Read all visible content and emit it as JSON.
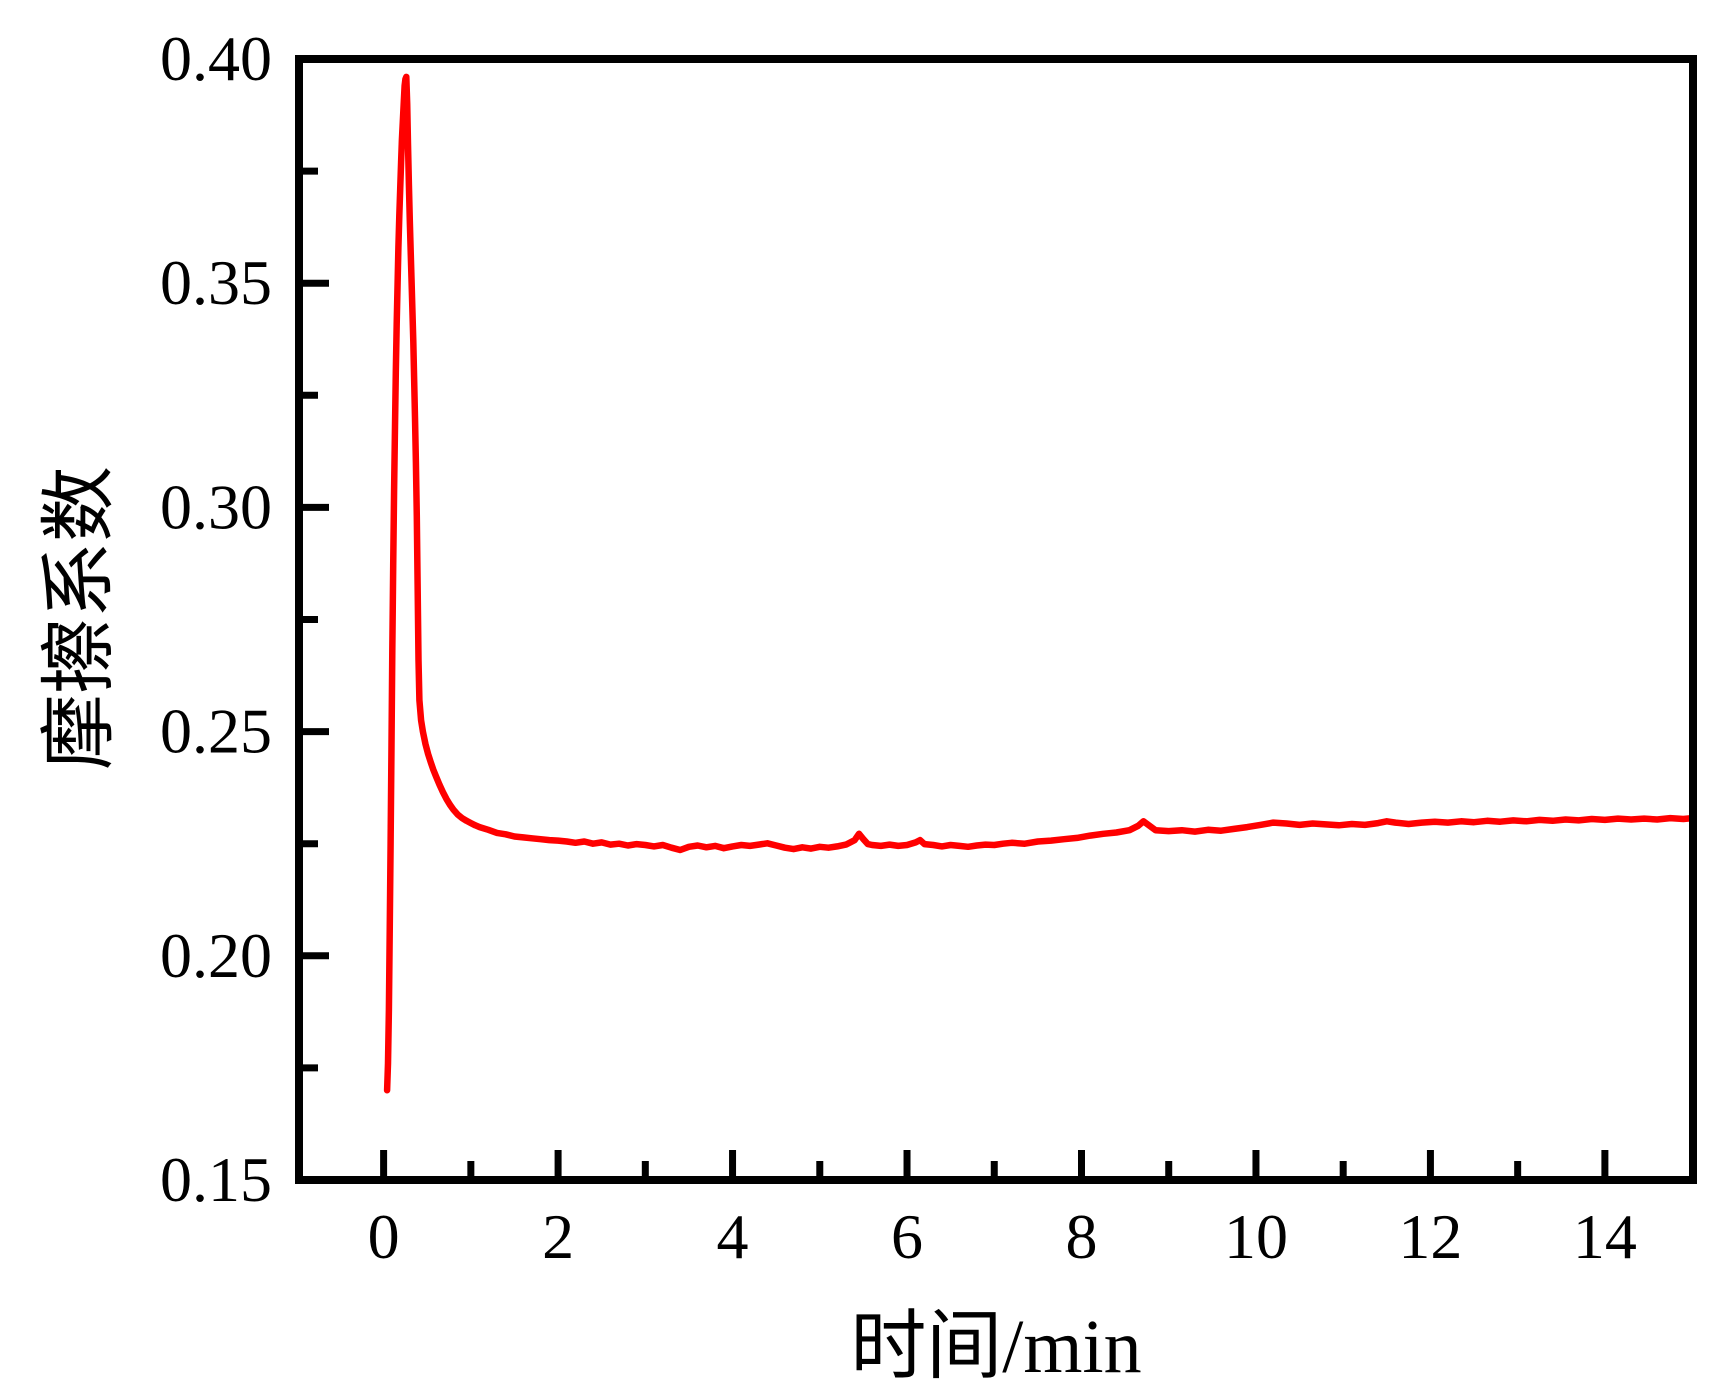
{
  "colors": {
    "background": "#FFFFFF",
    "axis": "#000000",
    "curve": "#FF0000"
  },
  "chart_data": {
    "type": "line",
    "title": "",
    "xlabel": "时间/min",
    "ylabel": "摩擦系数",
    "xlim": [
      -0.97,
      15.01
    ],
    "ylim": [
      0.15,
      0.4
    ],
    "grid": false,
    "legend": "none",
    "x_major_ticks": [
      0,
      2,
      4,
      6,
      8,
      10,
      12,
      14
    ],
    "x_major_labels": [
      "0",
      "2",
      "4",
      "6",
      "8",
      "10",
      "12",
      "14"
    ],
    "x_minor_ticks": [
      1,
      3,
      5,
      7,
      9,
      11,
      13
    ],
    "y_major_ticks": [
      0.15,
      0.2,
      0.25,
      0.3,
      0.35,
      0.4
    ],
    "y_major_labels": [
      "0.15",
      "0.20",
      "0.25",
      "0.30",
      "0.35",
      "0.40"
    ],
    "y_minor_ticks": [
      0.175,
      0.225,
      0.275,
      0.325,
      0.375
    ],
    "series": [
      {
        "color": "#FF0000",
        "points": [
          [
            0.04,
            0.17
          ],
          [
            0.05,
            0.176
          ],
          [
            0.06,
            0.188
          ],
          [
            0.07,
            0.205
          ],
          [
            0.08,
            0.225
          ],
          [
            0.09,
            0.247
          ],
          [
            0.1,
            0.268
          ],
          [
            0.11,
            0.287
          ],
          [
            0.12,
            0.304
          ],
          [
            0.13,
            0.318
          ],
          [
            0.14,
            0.33
          ],
          [
            0.15,
            0.341
          ],
          [
            0.16,
            0.35
          ],
          [
            0.17,
            0.358
          ],
          [
            0.18,
            0.365
          ],
          [
            0.19,
            0.371
          ],
          [
            0.2,
            0.377
          ],
          [
            0.21,
            0.382
          ],
          [
            0.22,
            0.386
          ],
          [
            0.23,
            0.39
          ],
          [
            0.24,
            0.394
          ],
          [
            0.25,
            0.3955
          ],
          [
            0.26,
            0.396
          ],
          [
            0.27,
            0.39
          ],
          [
            0.28,
            0.381
          ],
          [
            0.29,
            0.372
          ],
          [
            0.3,
            0.364
          ],
          [
            0.31,
            0.357
          ],
          [
            0.32,
            0.351
          ],
          [
            0.33,
            0.344
          ],
          [
            0.34,
            0.337
          ],
          [
            0.35,
            0.329
          ],
          [
            0.36,
            0.32
          ],
          [
            0.37,
            0.31
          ],
          [
            0.38,
            0.298
          ],
          [
            0.39,
            0.283
          ],
          [
            0.4,
            0.266
          ],
          [
            0.41,
            0.257
          ],
          [
            0.43,
            0.2525
          ],
          [
            0.45,
            0.25
          ],
          [
            0.48,
            0.2472
          ],
          [
            0.51,
            0.245
          ],
          [
            0.54,
            0.2432
          ],
          [
            0.57,
            0.2415
          ],
          [
            0.6,
            0.24
          ],
          [
            0.64,
            0.2382
          ],
          [
            0.68,
            0.2365
          ],
          [
            0.72,
            0.235
          ],
          [
            0.76,
            0.2337
          ],
          [
            0.8,
            0.2326
          ],
          [
            0.85,
            0.2315
          ],
          [
            0.9,
            0.2307
          ],
          [
            0.95,
            0.2301
          ],
          [
            1.0,
            0.2296
          ],
          [
            1.05,
            0.2291
          ],
          [
            1.1,
            0.2287
          ],
          [
            1.2,
            0.2281
          ],
          [
            1.3,
            0.2274
          ],
          [
            1.4,
            0.2271
          ],
          [
            1.5,
            0.2266
          ],
          [
            1.6,
            0.2264
          ],
          [
            1.7,
            0.2262
          ],
          [
            1.8,
            0.226
          ],
          [
            1.9,
            0.2258
          ],
          [
            2.0,
            0.2257
          ],
          [
            2.1,
            0.2255
          ],
          [
            2.2,
            0.2252
          ],
          [
            2.3,
            0.2255
          ],
          [
            2.4,
            0.225
          ],
          [
            2.5,
            0.2253
          ],
          [
            2.6,
            0.2248
          ],
          [
            2.7,
            0.225
          ],
          [
            2.8,
            0.2246
          ],
          [
            2.9,
            0.2249
          ],
          [
            3.0,
            0.2247
          ],
          [
            3.1,
            0.2244
          ],
          [
            3.2,
            0.2247
          ],
          [
            3.3,
            0.2241
          ],
          [
            3.4,
            0.2236
          ],
          [
            3.5,
            0.2243
          ],
          [
            3.6,
            0.2246
          ],
          [
            3.7,
            0.2242
          ],
          [
            3.8,
            0.2245
          ],
          [
            3.9,
            0.224
          ],
          [
            4.0,
            0.2244
          ],
          [
            4.1,
            0.2247
          ],
          [
            4.2,
            0.2245
          ],
          [
            4.3,
            0.2248
          ],
          [
            4.4,
            0.2251
          ],
          [
            4.5,
            0.2246
          ],
          [
            4.6,
            0.2241
          ],
          [
            4.7,
            0.2238
          ],
          [
            4.8,
            0.2242
          ],
          [
            4.9,
            0.2239
          ],
          [
            5.0,
            0.2243
          ],
          [
            5.1,
            0.2241
          ],
          [
            5.2,
            0.2244
          ],
          [
            5.3,
            0.2248
          ],
          [
            5.4,
            0.2258
          ],
          [
            5.45,
            0.2272
          ],
          [
            5.5,
            0.226
          ],
          [
            5.55,
            0.2249
          ],
          [
            5.6,
            0.2247
          ],
          [
            5.7,
            0.2245
          ],
          [
            5.8,
            0.2248
          ],
          [
            5.9,
            0.2245
          ],
          [
            6.0,
            0.2247
          ],
          [
            6.1,
            0.2253
          ],
          [
            6.15,
            0.2258
          ],
          [
            6.2,
            0.2249
          ],
          [
            6.3,
            0.2247
          ],
          [
            6.4,
            0.2244
          ],
          [
            6.5,
            0.2247
          ],
          [
            6.6,
            0.2245
          ],
          [
            6.7,
            0.2243
          ],
          [
            6.8,
            0.2246
          ],
          [
            6.9,
            0.2248
          ],
          [
            7.0,
            0.2247
          ],
          [
            7.1,
            0.225
          ],
          [
            7.2,
            0.2252
          ],
          [
            7.35,
            0.225
          ],
          [
            7.5,
            0.2255
          ],
          [
            7.65,
            0.2257
          ],
          [
            7.8,
            0.226
          ],
          [
            7.95,
            0.2263
          ],
          [
            8.1,
            0.2268
          ],
          [
            8.25,
            0.2272
          ],
          [
            8.4,
            0.2275
          ],
          [
            8.55,
            0.228
          ],
          [
            8.65,
            0.229
          ],
          [
            8.71,
            0.23
          ],
          [
            8.78,
            0.229
          ],
          [
            8.85,
            0.228
          ],
          [
            9.0,
            0.2278
          ],
          [
            9.15,
            0.228
          ],
          [
            9.3,
            0.2277
          ],
          [
            9.45,
            0.2281
          ],
          [
            9.6,
            0.2279
          ],
          [
            9.75,
            0.2283
          ],
          [
            9.9,
            0.2287
          ],
          [
            10.05,
            0.2292
          ],
          [
            10.2,
            0.2297
          ],
          [
            10.35,
            0.2295
          ],
          [
            10.5,
            0.2292
          ],
          [
            10.65,
            0.2295
          ],
          [
            10.8,
            0.2293
          ],
          [
            10.95,
            0.2291
          ],
          [
            11.1,
            0.2294
          ],
          [
            11.25,
            0.2292
          ],
          [
            11.4,
            0.2296
          ],
          [
            11.5,
            0.23
          ],
          [
            11.6,
            0.2297
          ],
          [
            11.75,
            0.2294
          ],
          [
            11.9,
            0.2297
          ],
          [
            12.05,
            0.2299
          ],
          [
            12.2,
            0.2297
          ],
          [
            12.35,
            0.23
          ],
          [
            12.5,
            0.2298
          ],
          [
            12.65,
            0.2301
          ],
          [
            12.8,
            0.2299
          ],
          [
            12.95,
            0.2302
          ],
          [
            13.1,
            0.23
          ],
          [
            13.25,
            0.2303
          ],
          [
            13.4,
            0.2301
          ],
          [
            13.55,
            0.2304
          ],
          [
            13.7,
            0.2302
          ],
          [
            13.85,
            0.2305
          ],
          [
            14.0,
            0.2303
          ],
          [
            14.15,
            0.2306
          ],
          [
            14.3,
            0.2304
          ],
          [
            14.45,
            0.2306
          ],
          [
            14.6,
            0.2304
          ],
          [
            14.75,
            0.2307
          ],
          [
            14.9,
            0.2305
          ],
          [
            15.0,
            0.2307
          ]
        ]
      }
    ]
  }
}
